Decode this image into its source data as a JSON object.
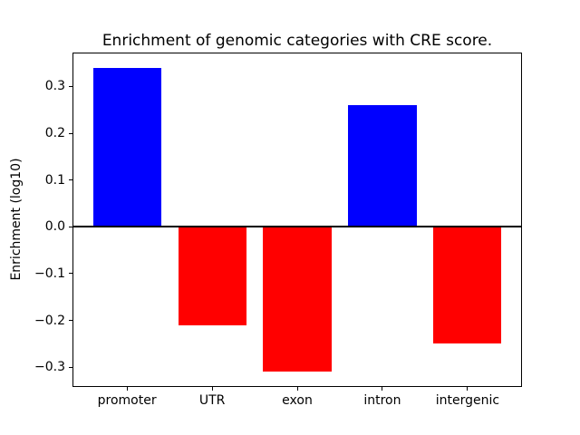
{
  "chart_data": {
    "type": "bar",
    "title": "Enrichment of genomic categories with CRE score.",
    "xlabel": "",
    "ylabel": "Enrichment (log10)",
    "categories": [
      "promoter",
      "UTR",
      "exon",
      "intron",
      "intergenic"
    ],
    "values": [
      0.34,
      -0.21,
      -0.31,
      0.26,
      -0.25
    ],
    "bar_colors": [
      "#0000ff",
      "#ff0000",
      "#ff0000",
      "#0000ff",
      "#ff0000"
    ],
    "positive_color": "#0000ff",
    "negative_color": "#ff0000",
    "yticks": [
      0.3,
      0.2,
      0.1,
      0.0,
      -0.1,
      -0.2,
      -0.3
    ],
    "ytick_labels": [
      "0.3",
      "0.2",
      "0.1",
      "0.0",
      "−0.1",
      "−0.2",
      "−0.3"
    ],
    "ylim": [
      -0.3425,
      0.3725
    ],
    "bar_width_fraction": 0.8,
    "zero_line": true,
    "grid": false,
    "legend": null,
    "background_color": "#ffffff",
    "axis_color": "#000000"
  }
}
